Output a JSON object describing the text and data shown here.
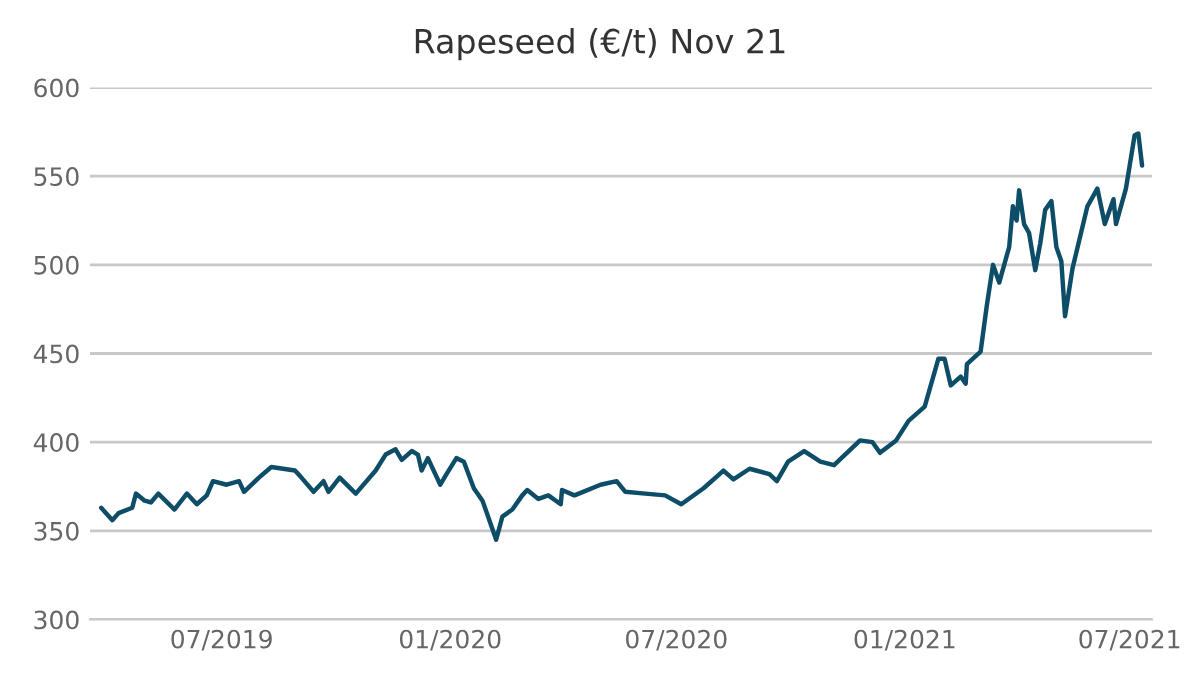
{
  "chart_data": {
    "type": "line",
    "title": "Rapeseed (€/t) Nov 21",
    "x": [
      "2019-03-26",
      "2019-04-04",
      "2019-04-09",
      "2019-04-20",
      "2019-04-23",
      "2019-04-30",
      "2019-05-05",
      "2019-05-11",
      "2019-05-24",
      "2019-06-03",
      "2019-06-11",
      "2019-06-19",
      "2019-06-24",
      "2019-07-05",
      "2019-07-15",
      "2019-07-19",
      "2019-07-31",
      "2019-08-10",
      "2019-08-29",
      "2019-09-02",
      "2019-09-13",
      "2019-09-21",
      "2019-09-25",
      "2019-10-04",
      "2019-10-17",
      "2019-11-02",
      "2019-11-10",
      "2019-11-18",
      "2019-11-23",
      "2019-12-01",
      "2019-12-06",
      "2019-12-09",
      "2019-12-14",
      "2019-12-24",
      "2019-12-29",
      "2020-01-06",
      "2020-01-12",
      "2020-01-20",
      "2020-01-27",
      "2020-02-07",
      "2020-02-12",
      "2020-02-20",
      "2020-02-28",
      "2020-03-03",
      "2020-03-12",
      "2020-03-20",
      "2020-03-30",
      "2020-03-31",
      "2020-04-10",
      "2020-04-17",
      "2020-05-01",
      "2020-05-14",
      "2020-05-21",
      "2020-06-06",
      "2020-06-22",
      "2020-07-05",
      "2020-07-23",
      "2020-08-08",
      "2020-08-16",
      "2020-08-29",
      "2020-09-14",
      "2020-09-20",
      "2020-09-29",
      "2020-10-12",
      "2020-10-25",
      "2020-11-05",
      "2020-11-26",
      "2020-12-06",
      "2020-12-12",
      "2020-12-25",
      "2021-01-04",
      "2021-01-17",
      "2021-01-28",
      "2021-02-02",
      "2021-02-07",
      "2021-02-15",
      "2021-02-19",
      "2021-02-20",
      "2021-03-03",
      "2021-03-08",
      "2021-03-13",
      "2021-03-18",
      "2021-03-26",
      "2021-03-29",
      "2021-04-01",
      "2021-04-03",
      "2021-04-07",
      "2021-04-11",
      "2021-04-16",
      "2021-04-20",
      "2021-04-24",
      "2021-04-29",
      "2021-05-03",
      "2021-05-07",
      "2021-05-10",
      "2021-05-16",
      "2021-05-28",
      "2021-06-05",
      "2021-06-11",
      "2021-06-18",
      "2021-06-20",
      "2021-06-28",
      "2021-07-05",
      "2021-07-08",
      "2021-07-11"
    ],
    "series": [
      {
        "color": "#0e4d68",
        "values": [
          363,
          356,
          360,
          363,
          371,
          367,
          366,
          371,
          362,
          371,
          365,
          370,
          378,
          376,
          378,
          372,
          380,
          386,
          384,
          381,
          372,
          378,
          372,
          380,
          371,
          384,
          393,
          396,
          390,
          395,
          393,
          384,
          391,
          376,
          382,
          391,
          389,
          374,
          367,
          345,
          358,
          362,
          370,
          373,
          368,
          370,
          365,
          373,
          370,
          372,
          376,
          378,
          372,
          371,
          370,
          365,
          374,
          384,
          379,
          385,
          382,
          378,
          389,
          395,
          389,
          387,
          401,
          400,
          394,
          401,
          412,
          420,
          447,
          447,
          432,
          437,
          433,
          444,
          451,
          477,
          500,
          490,
          510,
          533,
          525,
          542,
          523,
          518,
          497,
          512,
          531,
          536,
          510,
          502,
          471,
          498,
          533,
          543,
          523,
          537,
          523,
          543,
          573,
          574,
          556
        ]
      }
    ],
    "xlim": [
      "2019-03-17",
      "2021-07-19"
    ],
    "xticks": [
      {
        "value": "2019-07-01",
        "label": "07/2019"
      },
      {
        "value": "2020-01-01",
        "label": "01/2020"
      },
      {
        "value": "2020-07-01",
        "label": "07/2020"
      },
      {
        "value": "2021-01-01",
        "label": "01/2021"
      },
      {
        "value": "2021-07-01",
        "label": "07/2021"
      }
    ],
    "ylim": [
      300,
      600
    ],
    "yticks": [
      300,
      350,
      400,
      450,
      500,
      550,
      600
    ],
    "grid": "y",
    "legend": false,
    "line_style": "solid",
    "marker": "none"
  }
}
